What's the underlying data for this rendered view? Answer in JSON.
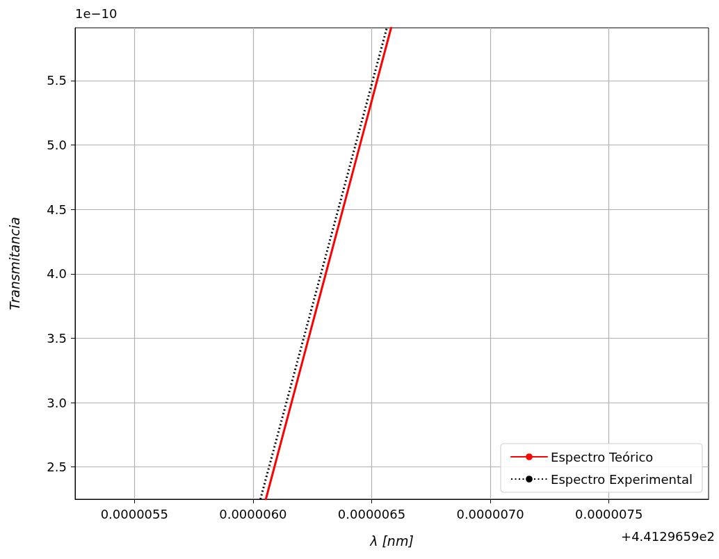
{
  "chart_data": {
    "type": "line",
    "xlabel": "λ [nm]",
    "ylabel": "Transmitancia",
    "annotations": [
      "1e−10",
      "+4.4129659e2"
    ],
    "series": [
      {
        "name": "Espectro Teórico",
        "color": "#ff0000",
        "line_style": "solid",
        "x": [
          6.054e-06,
          6.318e-06,
          6.582e-06
        ],
        "values": [
          2.25,
          4.08,
          5.91
        ]
      },
      {
        "name": "Espectro Experimental",
        "color": "#000000",
        "line_style": "dotted",
        "x": [
          6.031e-06,
          6.298e-06,
          6.564e-06
        ],
        "values": [
          2.25,
          4.08,
          5.91
        ]
      }
    ],
    "xlim": [
      5.25e-06,
      7.92e-06
    ],
    "xticks": [
      {
        "value": 5.5e-06,
        "label": "0.0000055"
      },
      {
        "value": 6e-06,
        "label": "0.0000060"
      },
      {
        "value": 6.5e-06,
        "label": "0.0000065"
      },
      {
        "value": 7e-06,
        "label": "0.0000070"
      },
      {
        "value": 7.5e-06,
        "label": "0.0000075"
      }
    ],
    "ylim": [
      2.25,
      5.91
    ],
    "yticks": [
      {
        "value": 2.5,
        "label": "2.5"
      },
      {
        "value": 3,
        "label": "3.0"
      },
      {
        "value": 3.5,
        "label": "3.5"
      },
      {
        "value": 4,
        "label": "4.0"
      },
      {
        "value": 4.5,
        "label": "4.5"
      },
      {
        "value": 5,
        "label": "5.0"
      },
      {
        "value": 5.5,
        "label": "5.5"
      }
    ],
    "grid": true,
    "legend": "bottom right",
    "marker": "none"
  }
}
